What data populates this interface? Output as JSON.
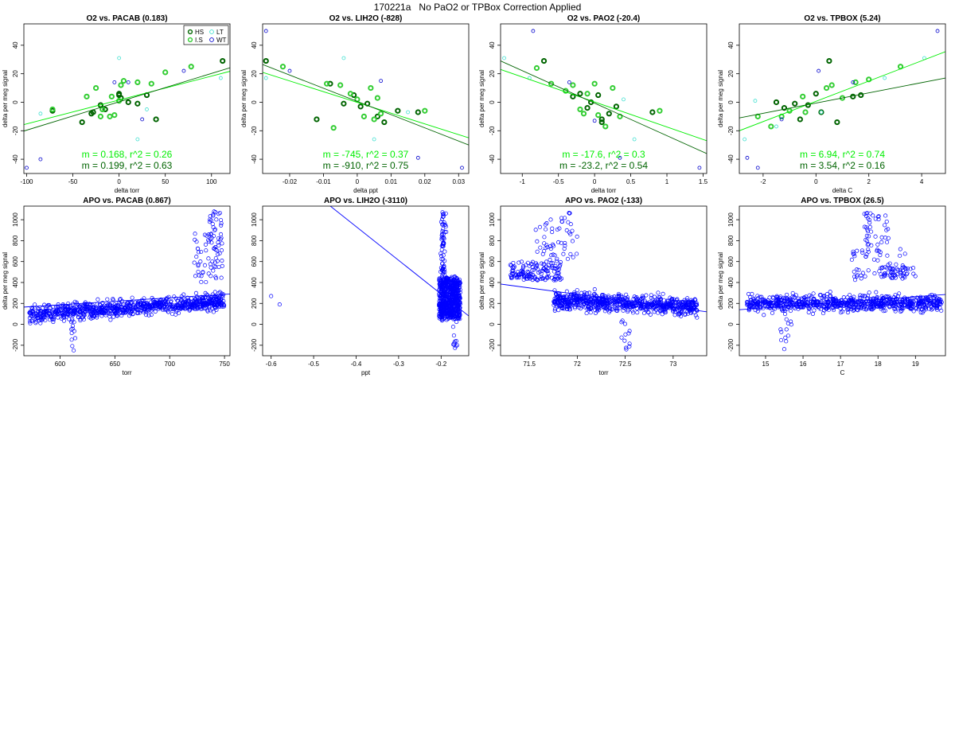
{
  "page": {
    "title": "170221a   No PaO2 or TPBox Correction Applied"
  },
  "colors": {
    "HS": "#006400",
    "I.S": "#32cd32",
    "LT": "#40e0d0",
    "WT": "#0000cd",
    "fit_a": "#00ee00",
    "fit_b": "#006400",
    "apo": "#0000ff"
  },
  "chart_data": [
    {
      "type": "scatter",
      "title": "O2 vs. PACAB (0.183)",
      "xlabel": "delta torr",
      "ylabel": "delta per meg signal",
      "xlim": [
        -103,
        120
      ],
      "ylim": [
        -50,
        55
      ],
      "xticks": [
        -100,
        -50,
        0,
        50,
        100
      ],
      "yticks": [
        -40,
        -20,
        0,
        20,
        40
      ],
      "legend": {
        "position": "top-right",
        "entries": [
          "HS",
          "LT",
          "I.S",
          "WT"
        ]
      },
      "series": [
        {
          "name": "HS",
          "x": [
            -40,
            -28,
            -20,
            -15,
            0,
            2,
            10,
            20,
            30,
            40,
            112,
            -30,
            0,
            -72
          ],
          "y": [
            -14,
            -7,
            -2,
            -5,
            5,
            3,
            0,
            -1,
            5,
            -12,
            29,
            -8,
            6,
            -6
          ]
        },
        {
          "name": "I.S",
          "x": [
            -35,
            -25,
            -20,
            -10,
            -5,
            0,
            5,
            20,
            35,
            50,
            78,
            -18,
            -8,
            2,
            -72
          ],
          "y": [
            4,
            10,
            -10,
            -10,
            -9,
            1,
            15,
            14,
            13,
            21,
            25,
            -5,
            4,
            12,
            -5
          ]
        },
        {
          "name": "LT",
          "x": [
            -85,
            0,
            20,
            30,
            110
          ],
          "y": [
            -8,
            31,
            -26,
            -5,
            17
          ]
        },
        {
          "name": "WT",
          "x": [
            -100,
            -85,
            10,
            25,
            70,
            -5
          ],
          "y": [
            -46,
            -40,
            14,
            -12,
            22,
            14
          ]
        }
      ],
      "fits": [
        {
          "x": [
            -103,
            120
          ],
          "y": [
            -15.7,
            21.7
          ],
          "color_key": "fit_a"
        },
        {
          "x": [
            -103,
            120
          ],
          "y": [
            -20.2,
            24.2
          ],
          "color_key": "fit_b"
        }
      ],
      "annotations": [
        "m = 0.168, r^2 = 0.26",
        "m = 0.199, r^2 = 0.63"
      ]
    },
    {
      "type": "scatter",
      "title": "O2 vs. LIH2O (-828)",
      "xlabel": "delta ppt",
      "ylabel": "delta per meg signal",
      "xlim": [
        -0.028,
        0.033
      ],
      "ylim": [
        -50,
        55
      ],
      "xticks": [
        -0.02,
        -0.01,
        0.0,
        0.01,
        0.02,
        0.03
      ],
      "yticks": [
        -40,
        -20,
        0,
        20,
        40
      ],
      "series": [
        {
          "name": "HS",
          "x": [
            -0.027,
            -0.012,
            -0.008,
            -0.004,
            -0.001,
            0.001,
            0.003,
            0.006,
            0.008,
            0.012,
            0.018
          ],
          "y": [
            29,
            -12,
            13,
            -1,
            5,
            -3,
            -1,
            -10,
            -14,
            -6,
            -7
          ]
        },
        {
          "name": "I.S",
          "x": [
            -0.022,
            -0.009,
            -0.007,
            -0.005,
            -0.002,
            0.0,
            0.002,
            0.004,
            0.005,
            0.006,
            0.007,
            0.02
          ],
          "y": [
            25,
            13,
            -18,
            12,
            6,
            2,
            -10,
            10,
            -12,
            3,
            -8,
            -6
          ]
        },
        {
          "name": "LT",
          "x": [
            -0.027,
            -0.004,
            0.005,
            0.015
          ],
          "y": [
            17,
            31,
            -26,
            -7
          ]
        },
        {
          "name": "WT",
          "x": [
            -0.027,
            -0.02,
            0.007,
            0.018,
            0.031
          ],
          "y": [
            50,
            22,
            15,
            -39,
            -46
          ]
        }
      ],
      "fits": [
        {
          "x": [
            -0.028,
            0.033
          ],
          "y": [
            21,
            -25
          ],
          "color_key": "fit_a"
        },
        {
          "x": [
            -0.028,
            0.033
          ],
          "y": [
            26.5,
            -30
          ],
          "color_key": "fit_b"
        }
      ],
      "annotations": [
        "m = -745, r^2 = 0.37",
        "m = -910, r^2 = 0.75"
      ]
    },
    {
      "type": "scatter",
      "title": "O2 vs. PAO2 (-20.4)",
      "xlabel": "delta torr",
      "ylabel": "delta per meg signal",
      "xlim": [
        -1.3,
        1.55
      ],
      "ylim": [
        -50,
        55
      ],
      "xticks": [
        -1.0,
        -0.5,
        0.0,
        0.5,
        1.0,
        1.5
      ],
      "yticks": [
        -40,
        -20,
        0,
        20,
        40
      ],
      "series": [
        {
          "name": "HS",
          "x": [
            -0.7,
            -0.3,
            -0.2,
            -0.05,
            0.05,
            0.1,
            0.2,
            0.3,
            0.8,
            0.1,
            -0.1
          ],
          "y": [
            29,
            4,
            6,
            0,
            5,
            -14,
            -8,
            -3,
            -7,
            -12,
            -4
          ]
        },
        {
          "name": "I.S",
          "x": [
            -0.8,
            -0.6,
            -0.4,
            -0.3,
            -0.2,
            -0.1,
            0.0,
            0.05,
            0.15,
            0.25,
            0.35,
            0.9,
            -0.15
          ],
          "y": [
            24,
            13,
            8,
            12,
            -5,
            6,
            13,
            -9,
            -17,
            10,
            -10,
            -6,
            -8
          ]
        },
        {
          "name": "LT",
          "x": [
            -1.25,
            -0.9,
            0.4,
            0.55
          ],
          "y": [
            31,
            17,
            2,
            -26
          ]
        },
        {
          "name": "WT",
          "x": [
            -0.85,
            -0.35,
            0.0,
            0.35,
            1.45
          ],
          "y": [
            50,
            14,
            -13,
            -39,
            -46
          ]
        }
      ],
      "fits": [
        {
          "x": [
            -1.3,
            1.55
          ],
          "y": [
            23,
            -27
          ],
          "color_key": "fit_a"
        },
        {
          "x": [
            -1.3,
            1.55
          ],
          "y": [
            29,
            -36
          ],
          "color_key": "fit_b"
        }
      ],
      "annotations": [
        "m = -17.6, r^2 = 0.3",
        "m = -23.2, r^2 = 0.54"
      ]
    },
    {
      "type": "scatter",
      "title": "O2 vs. TPBOX (5.24)",
      "xlabel": "delta C",
      "ylabel": "delta per meg signal",
      "xlim": [
        -2.9,
        4.9
      ],
      "ylim": [
        -50,
        55
      ],
      "xticks": [
        -2,
        0,
        2,
        4
      ],
      "yticks": [
        -40,
        -20,
        0,
        20,
        40
      ],
      "series": [
        {
          "name": "HS",
          "x": [
            -1.5,
            -1.2,
            -0.8,
            -0.6,
            -0.3,
            0.0,
            0.5,
            0.8,
            1.4,
            1.7,
            0.2
          ],
          "y": [
            0,
            -4,
            -1,
            -12,
            -2,
            6,
            29,
            -14,
            4,
            5,
            -7
          ]
        },
        {
          "name": "I.S",
          "x": [
            -2.2,
            -1.7,
            -1.3,
            -1.0,
            -0.5,
            0.4,
            0.6,
            1.0,
            1.5,
            2.0,
            3.2,
            -0.4
          ],
          "y": [
            -10,
            -17,
            -10,
            -6,
            4,
            10,
            12,
            3,
            14,
            16,
            25,
            -7
          ]
        },
        {
          "name": "LT",
          "x": [
            -2.7,
            -2.3,
            -1.5,
            0.2,
            2.6,
            4.1
          ],
          "y": [
            -26,
            1,
            -17,
            -7,
            17,
            31
          ]
        },
        {
          "name": "WT",
          "x": [
            -2.6,
            -2.2,
            -1.3,
            0.1,
            1.4,
            4.6
          ],
          "y": [
            -39,
            -46,
            -12,
            22,
            14,
            50
          ]
        }
      ],
      "fits": [
        {
          "x": [
            -2.9,
            4.9
          ],
          "y": [
            -20,
            35.5
          ],
          "color_key": "fit_a"
        },
        {
          "x": [
            -2.9,
            4.9
          ],
          "y": [
            -11,
            17
          ],
          "color_key": "fit_b"
        }
      ],
      "annotations": [
        "m = 6.94, r^2 = 0.74",
        "m = 3.54, r^2 = 0.16"
      ]
    },
    {
      "type": "scatter",
      "title": "APO vs. PACAB (0.867)",
      "xlabel": "torr",
      "ylabel": "delta per meg signal",
      "xlim": [
        567,
        755
      ],
      "ylim": [
        -300,
        1130
      ],
      "xticks": [
        600,
        650,
        700,
        750
      ],
      "yticks": [
        -200,
        0,
        200,
        400,
        600,
        800,
        1000
      ],
      "fits": [
        {
          "x": [
            567,
            755
          ],
          "y": [
            165,
            290
          ],
          "color_key": "apo"
        }
      ]
    },
    {
      "type": "scatter",
      "title": "APO vs. LIH2O (-3110)",
      "xlabel": "ppt",
      "ylabel": "",
      "xlim": [
        -0.62,
        -0.135
      ],
      "ylim": [
        -300,
        1130
      ],
      "xticks": [
        -0.6,
        -0.5,
        -0.4,
        -0.3,
        -0.2
      ],
      "yticks": [
        -200,
        0,
        200,
        400,
        600,
        800,
        1000
      ],
      "fits": [
        {
          "x": [
            -0.47,
            -0.135
          ],
          "y": [
            1160,
            80
          ],
          "color_key": "apo"
        }
      ]
    },
    {
      "type": "scatter",
      "title": "APO vs. PAO2 (-133)",
      "xlabel": "torr",
      "ylabel": "delta per meg signal",
      "xlim": [
        71.2,
        73.35
      ],
      "ylim": [
        -300,
        1130
      ],
      "xticks": [
        71.5,
        72.0,
        72.5,
        73.0
      ],
      "yticks": [
        -200,
        0,
        200,
        400,
        600,
        800,
        1000
      ],
      "fits": [
        {
          "x": [
            71.2,
            73.35
          ],
          "y": [
            385,
            120
          ],
          "color_key": "apo"
        }
      ]
    },
    {
      "type": "scatter",
      "title": "APO vs. TPBOX (26.5)",
      "xlabel": "C",
      "ylabel": "delta per meg signal",
      "xlim": [
        14.3,
        19.8
      ],
      "ylim": [
        -300,
        1130
      ],
      "xticks": [
        15,
        16,
        17,
        18,
        19
      ],
      "yticks": [
        -200,
        0,
        200,
        400,
        600,
        800,
        1000
      ],
      "fits": [
        {
          "x": [
            14.3,
            19.8
          ],
          "y": [
            140,
            285
          ],
          "color_key": "apo"
        }
      ]
    }
  ]
}
